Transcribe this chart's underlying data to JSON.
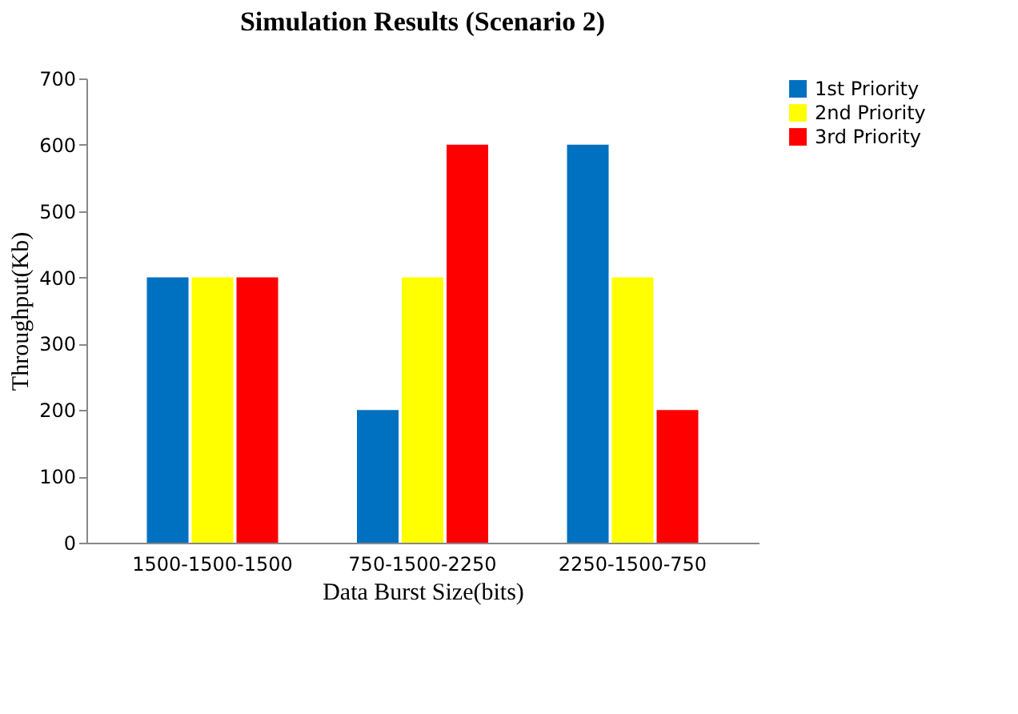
{
  "chart_data": {
    "type": "bar",
    "title": "Simulation  Results (Scenario 2)",
    "xlabel": "Data Burst Size(bits)",
    "ylabel": "Throughput(Kb)",
    "categories": [
      "1500-1500-1500",
      "750-1500-2250",
      "2250-1500-750"
    ],
    "series": [
      {
        "name": "1st Priority",
        "color": "#0070c0",
        "values": [
          400,
          200,
          600
        ]
      },
      {
        "name": "2nd Priority",
        "color": "#ffff00",
        "values": [
          400,
          400,
          400
        ]
      },
      {
        "name": "3rd Priority",
        "color": "#ff0000",
        "values": [
          400,
          600,
          200
        ]
      }
    ],
    "ylim": [
      0,
      700
    ],
    "yticks": [
      0,
      100,
      200,
      300,
      400,
      500,
      600,
      700
    ],
    "grid": false,
    "legend": "right"
  }
}
